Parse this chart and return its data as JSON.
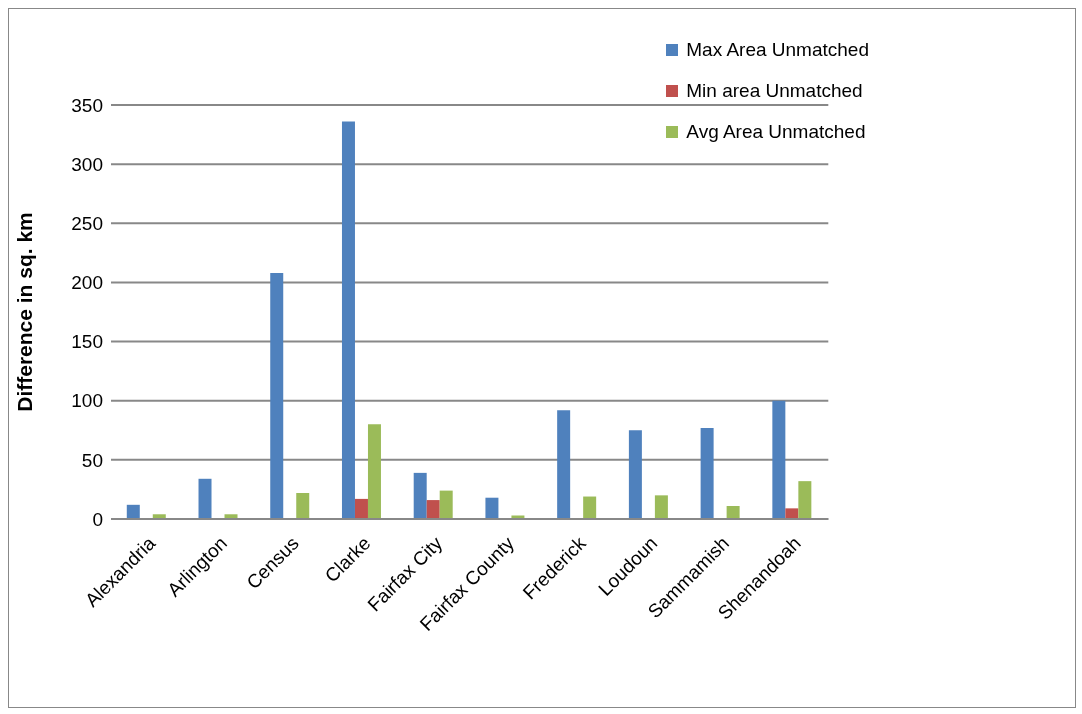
{
  "chart_data": {
    "type": "bar",
    "ylabel": "Difference in sq. km",
    "categories": [
      "Alexandria",
      "Arlington",
      "Census",
      "Clarke",
      "Fairfax City",
      "Fairfax County",
      "Frederick",
      "Loudoun",
      "Sammamish",
      "Shenandoah"
    ],
    "series": [
      {
        "name": "Max Area Unmatched",
        "color": "#4f81bd",
        "values": [
          12,
          34,
          208,
          336,
          39,
          18,
          92,
          75,
          77,
          100
        ]
      },
      {
        "name": "Min area Unmatched",
        "color": "#c0504d",
        "values": [
          0,
          0,
          0,
          17,
          16,
          0,
          0,
          0,
          0,
          9
        ]
      },
      {
        "name": "Avg Area Unmatched",
        "color": "#9bbb59",
        "values": [
          4,
          4,
          22,
          80,
          24,
          3,
          19,
          20,
          11,
          32
        ]
      }
    ],
    "ylim": [
      0,
      350
    ],
    "yticks": [
      0,
      50,
      100,
      150,
      200,
      250,
      300,
      350
    ],
    "grid": "y",
    "legend": "top right"
  }
}
